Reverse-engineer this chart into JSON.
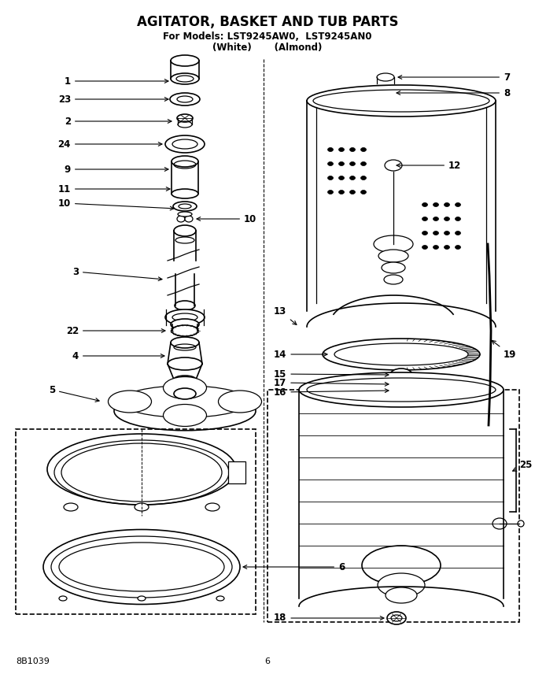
{
  "title_line1": "AGITATOR, BASKET AND TUB PARTS",
  "title_line2": "For Models: LST9245AW0,  LST9245AN0",
  "title_line3": "(White)       (Almond)",
  "footer_left": "8B1039",
  "footer_center": "6",
  "bg_color": "#ffffff",
  "line_color": "#000000",
  "title_fontsize": 12,
  "subtitle_fontsize": 8.5,
  "label_fontsize": 8.5,
  "footer_fontsize": 8
}
